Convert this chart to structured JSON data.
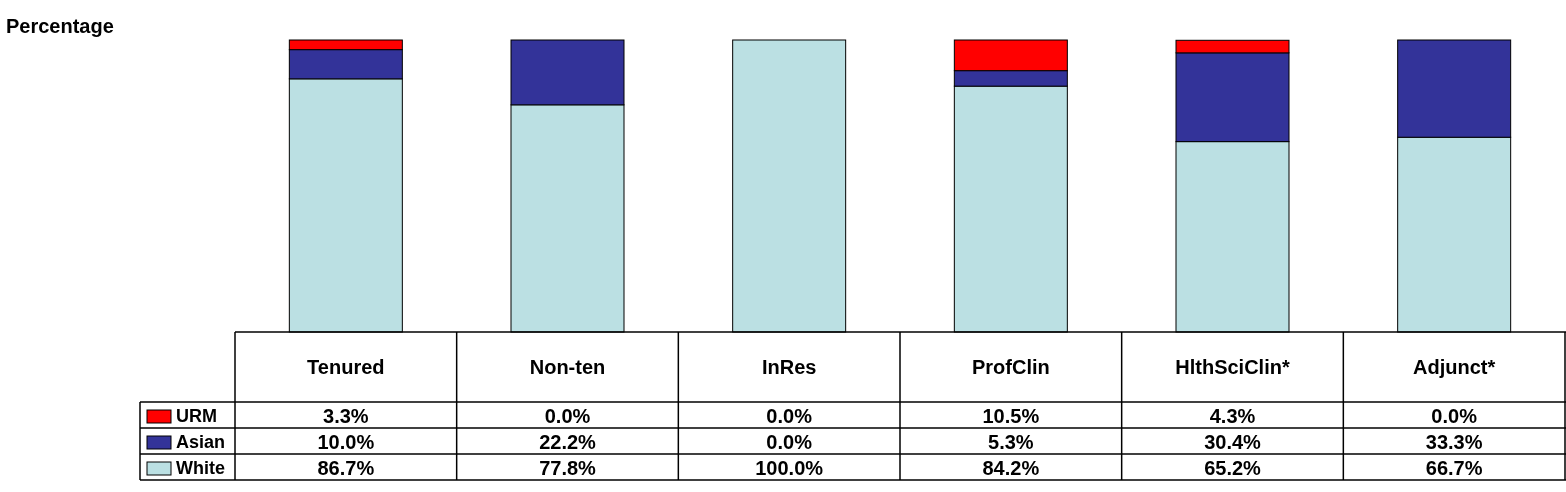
{
  "chart_data": {
    "type": "bar",
    "stacked": true,
    "annotations": [
      "Percentage"
    ],
    "categories": [
      "Tenured",
      "Non-ten",
      "InRes",
      "ProfClin",
      "HlthSciClin*",
      "Adjunct*"
    ],
    "ylim": [
      0,
      100
    ],
    "legend": "bottom left",
    "grid": false,
    "series": [
      {
        "name": "White",
        "color": "#bbe0e3",
        "values": [
          86.7,
          77.8,
          100.0,
          84.2,
          65.2,
          66.7
        ],
        "value_labels": [
          "86.7%",
          "77.8%",
          "100.0%",
          "84.2%",
          "65.2%",
          "66.7%"
        ]
      },
      {
        "name": "Asian",
        "color": "#333399",
        "values": [
          10.0,
          22.2,
          0.0,
          5.3,
          30.4,
          33.3
        ],
        "value_labels": [
          "10.0%",
          "22.2%",
          "0.0%",
          "5.3%",
          "30.4%",
          "33.3%"
        ]
      },
      {
        "name": "URM",
        "color": "#ff0000",
        "values": [
          3.3,
          0.0,
          0.0,
          10.5,
          4.3,
          0.0
        ],
        "value_labels": [
          "3.3%",
          "0.0%",
          "0.0%",
          "10.5%",
          "4.3%",
          "0.0%"
        ]
      }
    ]
  }
}
